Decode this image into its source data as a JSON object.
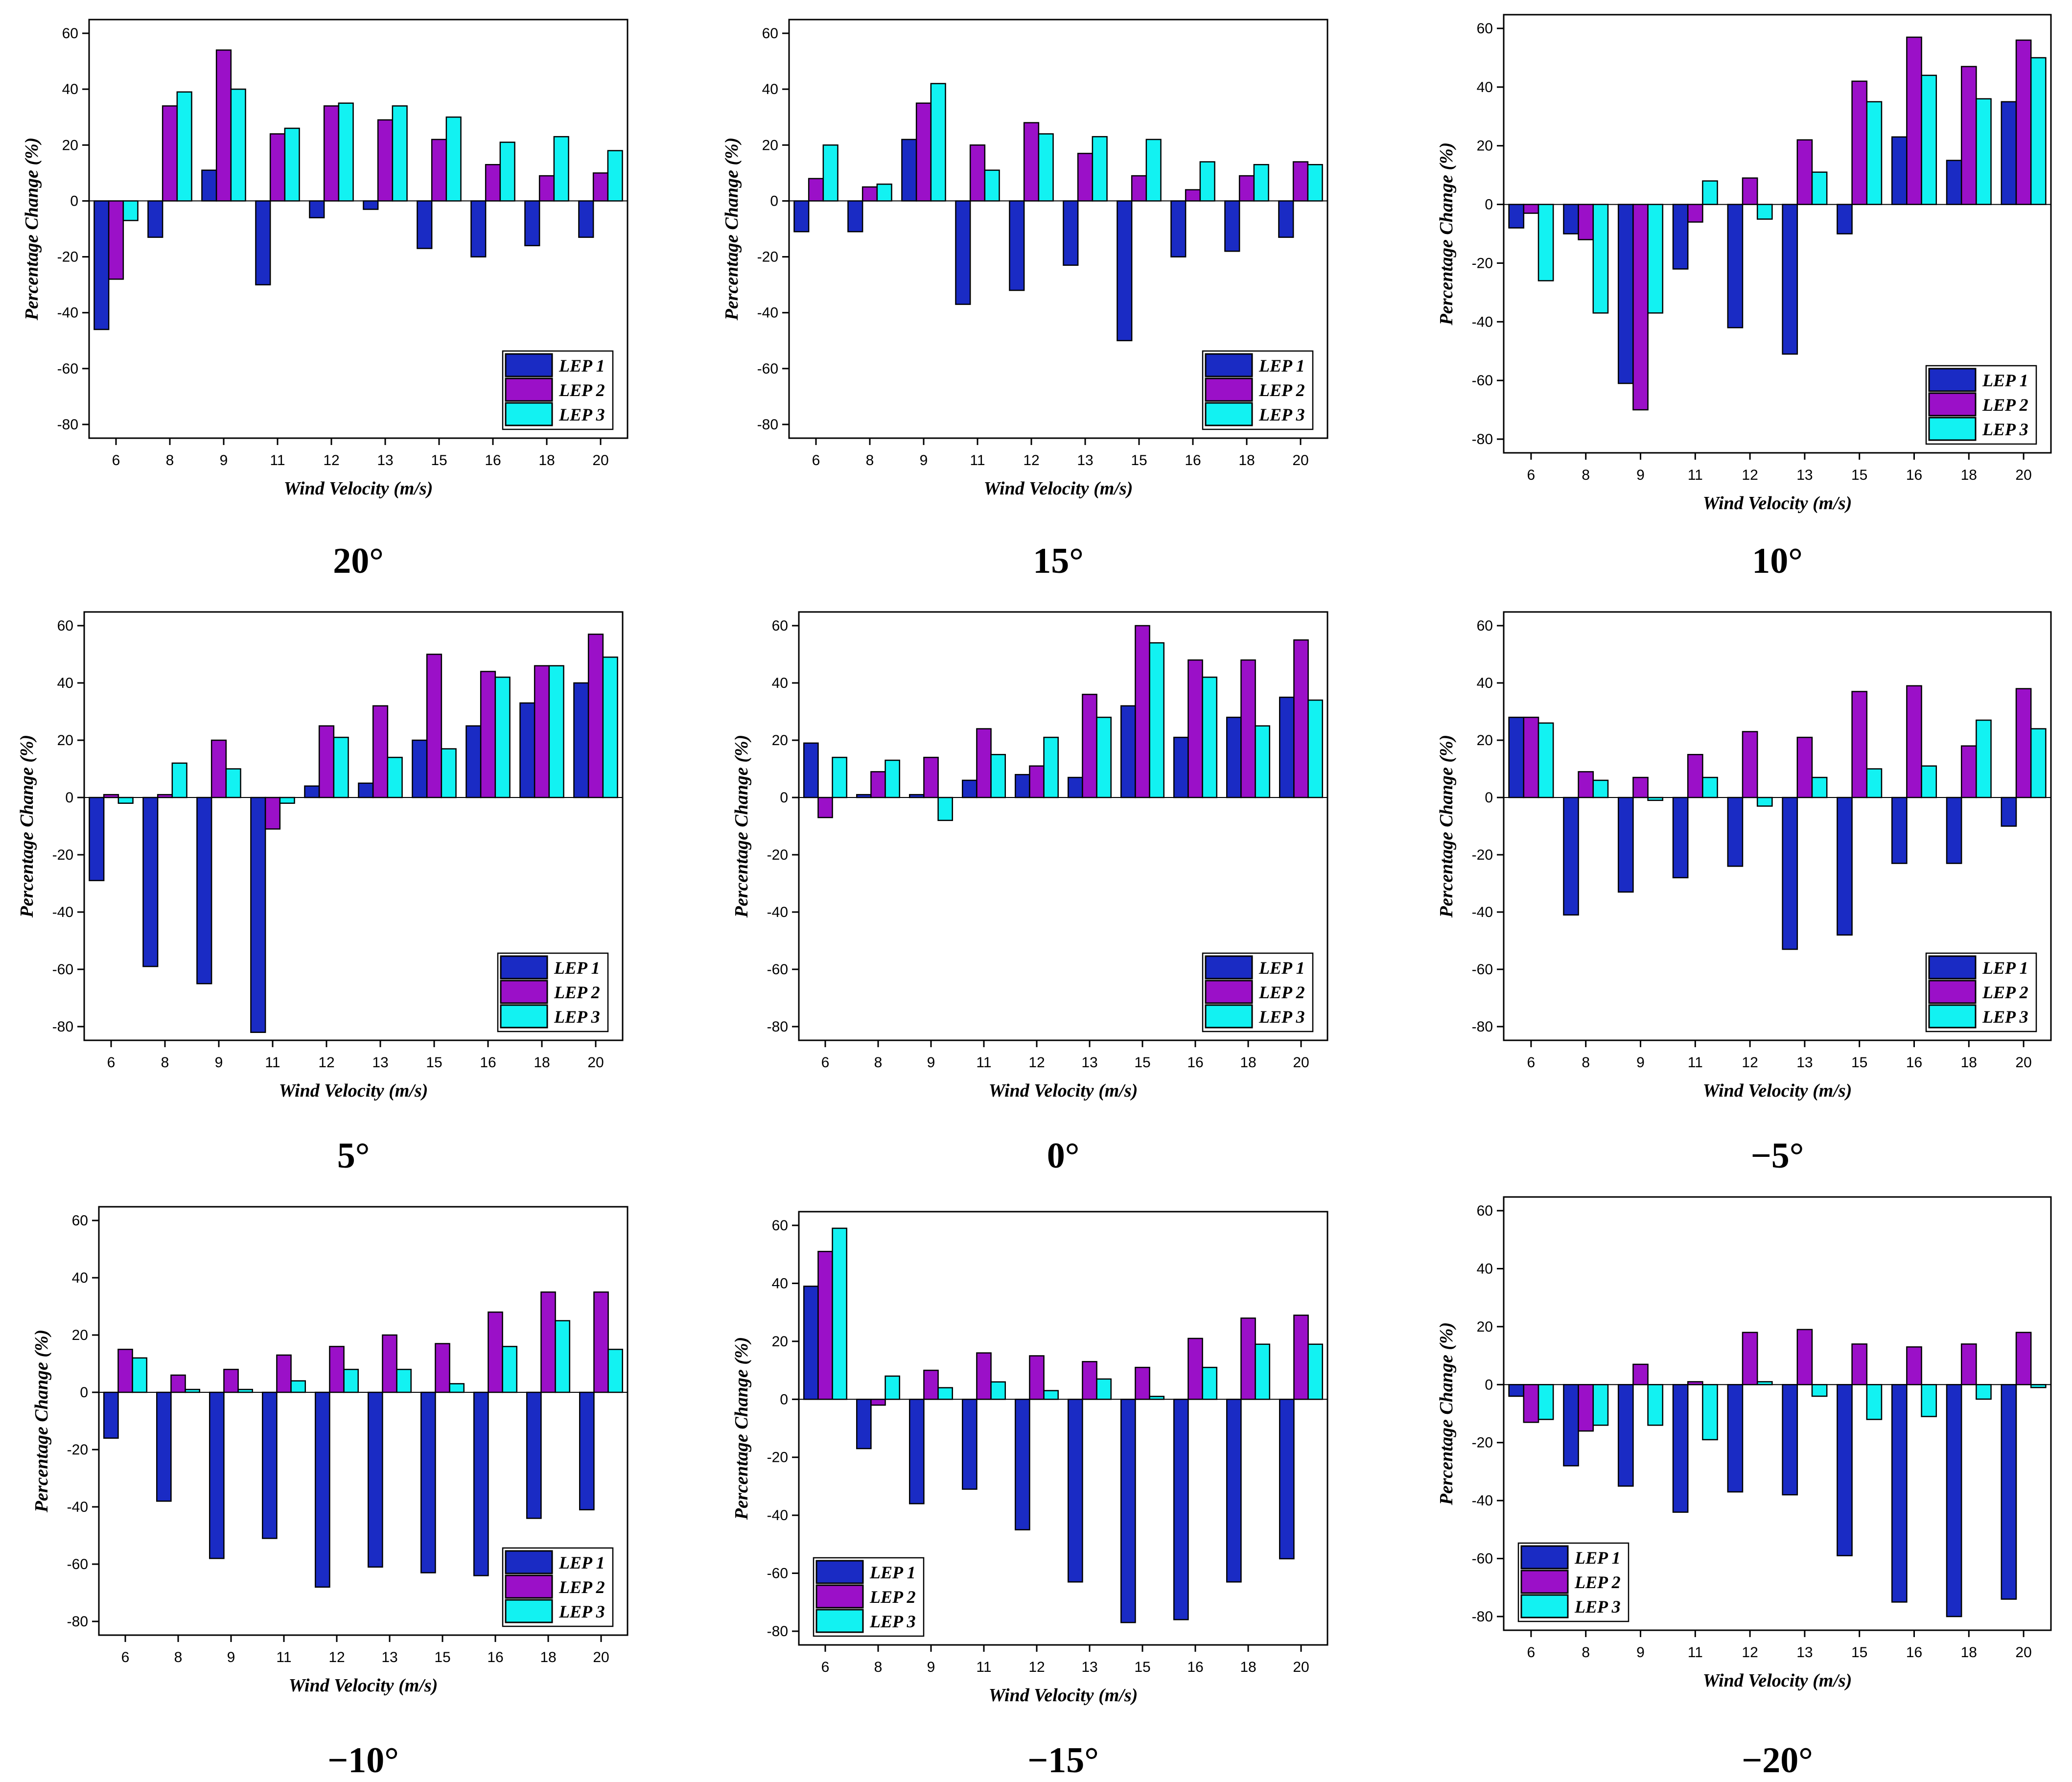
{
  "colors": {
    "LEP 1": "#1a2bc4",
    "LEP 2": "#9b10c8",
    "LEP 3": "#12f2f2",
    "stroke": "#000000"
  },
  "chart_data": [
    {
      "type": "bar",
      "caption": "20°",
      "categories": [
        "6",
        "8",
        "9",
        "11",
        "12",
        "13",
        "15",
        "16",
        "18",
        "20"
      ],
      "xlabel": "Wind Velocity (m/s)",
      "ylabel": "Percentage Change (%)",
      "ylim": [
        -80,
        60
      ],
      "yticks": [
        60,
        40,
        20,
        0,
        -20,
        -40,
        -60,
        -80
      ],
      "legend": "bottom-right",
      "series": [
        {
          "name": "LEP 1",
          "values": [
            -46,
            -13,
            11,
            -30,
            -6,
            -3,
            -17,
            -20,
            -16,
            -13
          ]
        },
        {
          "name": "LEP 2",
          "values": [
            -28,
            34,
            54,
            24,
            34,
            29,
            22,
            13,
            9,
            10
          ]
        },
        {
          "name": "LEP 3",
          "values": [
            -7,
            39,
            40,
            26,
            35,
            34,
            30,
            21,
            23,
            18
          ]
        }
      ]
    },
    {
      "type": "bar",
      "caption": "15°",
      "categories": [
        "6",
        "8",
        "9",
        "11",
        "12",
        "13",
        "15",
        "16",
        "18",
        "20"
      ],
      "xlabel": "Wind Velocity (m/s)",
      "ylabel": "Percentage Change (%)",
      "ylim": [
        -80,
        60
      ],
      "yticks": [
        60,
        40,
        20,
        0,
        -20,
        -40,
        -60,
        -80
      ],
      "legend": "bottom-right",
      "series": [
        {
          "name": "LEP 1",
          "values": [
            -11,
            -11,
            22,
            -37,
            -32,
            -23,
            -50,
            -20,
            -18,
            -13
          ]
        },
        {
          "name": "LEP 2",
          "values": [
            8,
            5,
            35,
            20,
            28,
            17,
            9,
            4,
            9,
            14
          ]
        },
        {
          "name": "LEP 3",
          "values": [
            20,
            6,
            42,
            11,
            24,
            23,
            22,
            14,
            13,
            13
          ]
        }
      ]
    },
    {
      "type": "bar",
      "caption": "10°",
      "categories": [
        "6",
        "8",
        "9",
        "11",
        "12",
        "13",
        "15",
        "16",
        "18",
        "20"
      ],
      "xlabel": "Wind Velocity (m/s)",
      "ylabel": "Percentage Change (%)",
      "ylim": [
        -80,
        60
      ],
      "yticks": [
        60,
        40,
        20,
        0,
        -20,
        -40,
        -60,
        -80
      ],
      "legend": "bottom-right",
      "series": [
        {
          "name": "LEP 1",
          "values": [
            -8,
            -10,
            -61,
            -22,
            -42,
            -51,
            -10,
            23,
            15,
            35
          ]
        },
        {
          "name": "LEP 2",
          "values": [
            -3,
            -12,
            -70,
            -6,
            9,
            22,
            42,
            57,
            47,
            56
          ]
        },
        {
          "name": "LEP 3",
          "values": [
            -26,
            -37,
            -37,
            8,
            -5,
            11,
            35,
            44,
            36,
            50
          ]
        }
      ]
    },
    {
      "type": "bar",
      "caption": "5°",
      "categories": [
        "6",
        "8",
        "9",
        "11",
        "12",
        "13",
        "15",
        "16",
        "18",
        "20"
      ],
      "xlabel": "Wind Velocity (m/s)",
      "ylabel": "Percentage Change (%)",
      "ylim": [
        -80,
        60
      ],
      "yticks": [
        60,
        40,
        20,
        0,
        -20,
        -40,
        -60,
        -80
      ],
      "legend": "bottom-right",
      "series": [
        {
          "name": "LEP 1",
          "values": [
            -29,
            -59,
            -65,
            -82,
            4,
            5,
            20,
            25,
            33,
            40
          ]
        },
        {
          "name": "LEP 2",
          "values": [
            1,
            1,
            20,
            -11,
            25,
            32,
            50,
            44,
            46,
            57
          ]
        },
        {
          "name": "LEP 3",
          "values": [
            -2,
            12,
            10,
            -2,
            21,
            14,
            17,
            42,
            46,
            49
          ]
        }
      ]
    },
    {
      "type": "bar",
      "caption": "0°",
      "categories": [
        "6",
        "8",
        "9",
        "11",
        "12",
        "13",
        "15",
        "16",
        "18",
        "20"
      ],
      "xlabel": "Wind Velocity (m/s)",
      "ylabel": "Percentage Change (%)",
      "ylim": [
        -80,
        60
      ],
      "yticks": [
        60,
        40,
        20,
        0,
        -20,
        -40,
        -60,
        -80
      ],
      "legend": "bottom-right",
      "series": [
        {
          "name": "LEP 1",
          "values": [
            19,
            1,
            1,
            6,
            8,
            7,
            32,
            21,
            28,
            35
          ]
        },
        {
          "name": "LEP 2",
          "values": [
            -7,
            9,
            14,
            24,
            11,
            36,
            60,
            48,
            48,
            55
          ]
        },
        {
          "name": "LEP 3",
          "values": [
            14,
            13,
            -8,
            15,
            21,
            28,
            54,
            42,
            25,
            34
          ]
        }
      ]
    },
    {
      "type": "bar",
      "caption": "−5°",
      "categories": [
        "6",
        "8",
        "9",
        "11",
        "12",
        "13",
        "15",
        "16",
        "18",
        "20"
      ],
      "xlabel": "Wind Velocity (m/s)",
      "ylabel": "Percentage Change (%)",
      "ylim": [
        -80,
        60
      ],
      "yticks": [
        60,
        40,
        20,
        0,
        -20,
        -40,
        -60,
        -80
      ],
      "legend": "bottom-right",
      "series": [
        {
          "name": "LEP 1",
          "values": [
            28,
            -41,
            -33,
            -28,
            -24,
            -53,
            -48,
            -23,
            -23,
            -10
          ]
        },
        {
          "name": "LEP 2",
          "values": [
            28,
            9,
            7,
            15,
            23,
            21,
            37,
            39,
            18,
            38
          ]
        },
        {
          "name": "LEP 3",
          "values": [
            26,
            6,
            -1,
            7,
            -3,
            7,
            10,
            11,
            27,
            24
          ]
        }
      ]
    },
    {
      "type": "bar",
      "caption": "−10°",
      "categories": [
        "6",
        "8",
        "9",
        "11",
        "12",
        "13",
        "15",
        "16",
        "18",
        "20"
      ],
      "xlabel": "Wind Velocity (m/s)",
      "ylabel": "Percentage Change (%)",
      "ylim": [
        -80,
        60
      ],
      "yticks": [
        60,
        40,
        20,
        0,
        -20,
        -40,
        -60,
        -80
      ],
      "legend": "bottom-right",
      "series": [
        {
          "name": "LEP 1",
          "values": [
            -16,
            -38,
            -58,
            -51,
            -68,
            -61,
            -63,
            -64,
            -44,
            -41
          ]
        },
        {
          "name": "LEP 2",
          "values": [
            15,
            6,
            8,
            13,
            16,
            20,
            17,
            28,
            35,
            35
          ]
        },
        {
          "name": "LEP 3",
          "values": [
            12,
            1,
            1,
            4,
            8,
            8,
            3,
            16,
            25,
            15
          ]
        }
      ]
    },
    {
      "type": "bar",
      "caption": "−15°",
      "categories": [
        "6",
        "8",
        "9",
        "11",
        "12",
        "13",
        "15",
        "16",
        "18",
        "20"
      ],
      "xlabel": "Wind Velocity (m/s)",
      "ylabel": "Percentage Change (%)",
      "ylim": [
        -80,
        60
      ],
      "yticks": [
        60,
        40,
        20,
        0,
        -20,
        -40,
        -60,
        -80
      ],
      "legend": "bottom-left",
      "series": [
        {
          "name": "LEP 1",
          "values": [
            39,
            -17,
            -36,
            -31,
            -45,
            -63,
            -77,
            -76,
            -63,
            -55
          ]
        },
        {
          "name": "LEP 2",
          "values": [
            51,
            -2,
            10,
            16,
            15,
            13,
            11,
            21,
            28,
            29
          ]
        },
        {
          "name": "LEP 3",
          "values": [
            59,
            8,
            4,
            6,
            3,
            7,
            1,
            11,
            19,
            19
          ]
        }
      ]
    },
    {
      "type": "bar",
      "caption": "−20°",
      "categories": [
        "6",
        "8",
        "9",
        "11",
        "12",
        "13",
        "15",
        "16",
        "18",
        "20"
      ],
      "xlabel": "Wind Velocity (m/s)",
      "ylabel": "Percentage Change (%)",
      "ylim": [
        -80,
        60
      ],
      "yticks": [
        60,
        40,
        20,
        0,
        -20,
        -40,
        -60,
        -80
      ],
      "legend": "bottom-left",
      "series": [
        {
          "name": "LEP 1",
          "values": [
            -4,
            -28,
            -35,
            -44,
            -37,
            -38,
            -59,
            -75,
            -80,
            -74
          ]
        },
        {
          "name": "LEP 2",
          "values": [
            -13,
            -16,
            7,
            1,
            18,
            19,
            14,
            13,
            14,
            18
          ]
        },
        {
          "name": "LEP 3",
          "values": [
            -12,
            -14,
            -14,
            -19,
            1,
            -4,
            -12,
            -11,
            -5,
            -1
          ]
        }
      ]
    }
  ]
}
